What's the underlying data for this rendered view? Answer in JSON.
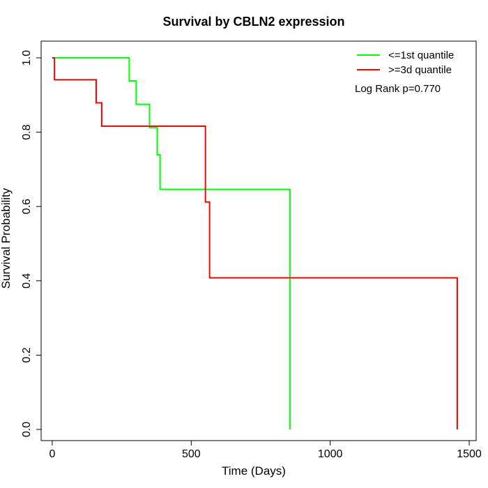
{
  "chart_data": {
    "type": "line",
    "title": "Survival by CBLN2 expression",
    "xlabel": "Time (Days)",
    "ylabel": "Survival Probability",
    "xlim": [
      -40,
      1525
    ],
    "ylim": [
      -0.03,
      1.045
    ],
    "x_ticks": [
      0,
      500,
      1000,
      1500
    ],
    "y_ticks": [
      0.0,
      0.2,
      0.4,
      0.6,
      0.8,
      1.0
    ],
    "y_tick_labels": [
      "0.0",
      "0.2",
      "0.4",
      "0.6",
      "0.8",
      "1.0"
    ],
    "legend_position": "top-right",
    "annotation": "Log Rank p=0.770",
    "series": [
      {
        "name": "<=1st quantile",
        "color": "#00ff00",
        "step_x": [
          0,
          277,
          302,
          350,
          378,
          388,
          855,
          855
        ],
        "step_y": [
          1.0,
          0.938,
          0.875,
          0.812,
          0.739,
          0.646,
          0.0,
          0.0
        ]
      },
      {
        "name": ">=3d quantile",
        "color": "#ff0000",
        "step_x": [
          0,
          8,
          158,
          178,
          551,
          566,
          1457,
          1457
        ],
        "step_y": [
          1.0,
          0.941,
          0.879,
          0.816,
          0.612,
          0.408,
          0.0,
          0.0
        ]
      }
    ]
  }
}
